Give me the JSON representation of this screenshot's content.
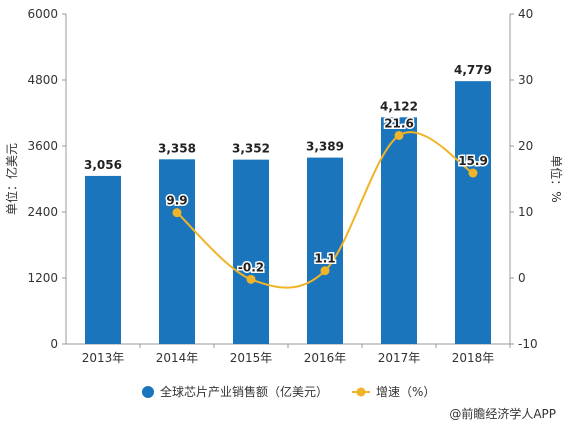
{
  "chart_data": {
    "type": "bar",
    "categories": [
      "2013年",
      "2014年",
      "2015年",
      "2016年",
      "2017年",
      "2018年"
    ],
    "series": [
      {
        "name": "全球芯片产业销售额（亿美元）",
        "type": "bar",
        "axis": "left",
        "values": [
          3056,
          3358,
          3352,
          3389,
          4122,
          4779
        ],
        "labels": [
          "3,056",
          "3,358",
          "3,352",
          "3,389",
          "4,122",
          "4,779"
        ],
        "color": "#1a75bc"
      },
      {
        "name": "增速（%）",
        "type": "line",
        "axis": "right",
        "values": [
          null,
          9.9,
          -0.2,
          1.1,
          21.6,
          15.9
        ],
        "labels": [
          "",
          "9.9",
          "-0.2",
          "1.1",
          "21.6",
          "15.9"
        ],
        "color": "#f0b428"
      }
    ],
    "y_left": {
      "label": "单位：亿美元",
      "min": 0,
      "max": 6000,
      "ticks": [
        0,
        1200,
        2400,
        3600,
        4800,
        6000
      ]
    },
    "y_right": {
      "label": "单位：%",
      "min": -10,
      "max": 40,
      "ticks": [
        -10,
        0,
        10,
        20,
        30,
        40
      ]
    },
    "legend_position": "bottom",
    "grid": false
  },
  "source_text": "@前瞻经济学人APP"
}
